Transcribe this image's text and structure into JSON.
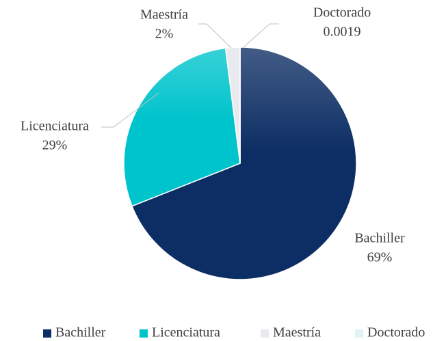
{
  "chart_data": {
    "type": "pie",
    "categories": [
      "Bachiller",
      "Licenciatura",
      "Maestría",
      "Doctorado"
    ],
    "values": [
      69,
      29,
      2,
      0.0019
    ],
    "value_labels": [
      "69%",
      "29%",
      "2%",
      "0.0019"
    ],
    "colors": [
      "#0d2e64",
      "#00c4cc",
      "#e8eaee",
      "#e2f3f7"
    ],
    "legend": "bottom"
  }
}
